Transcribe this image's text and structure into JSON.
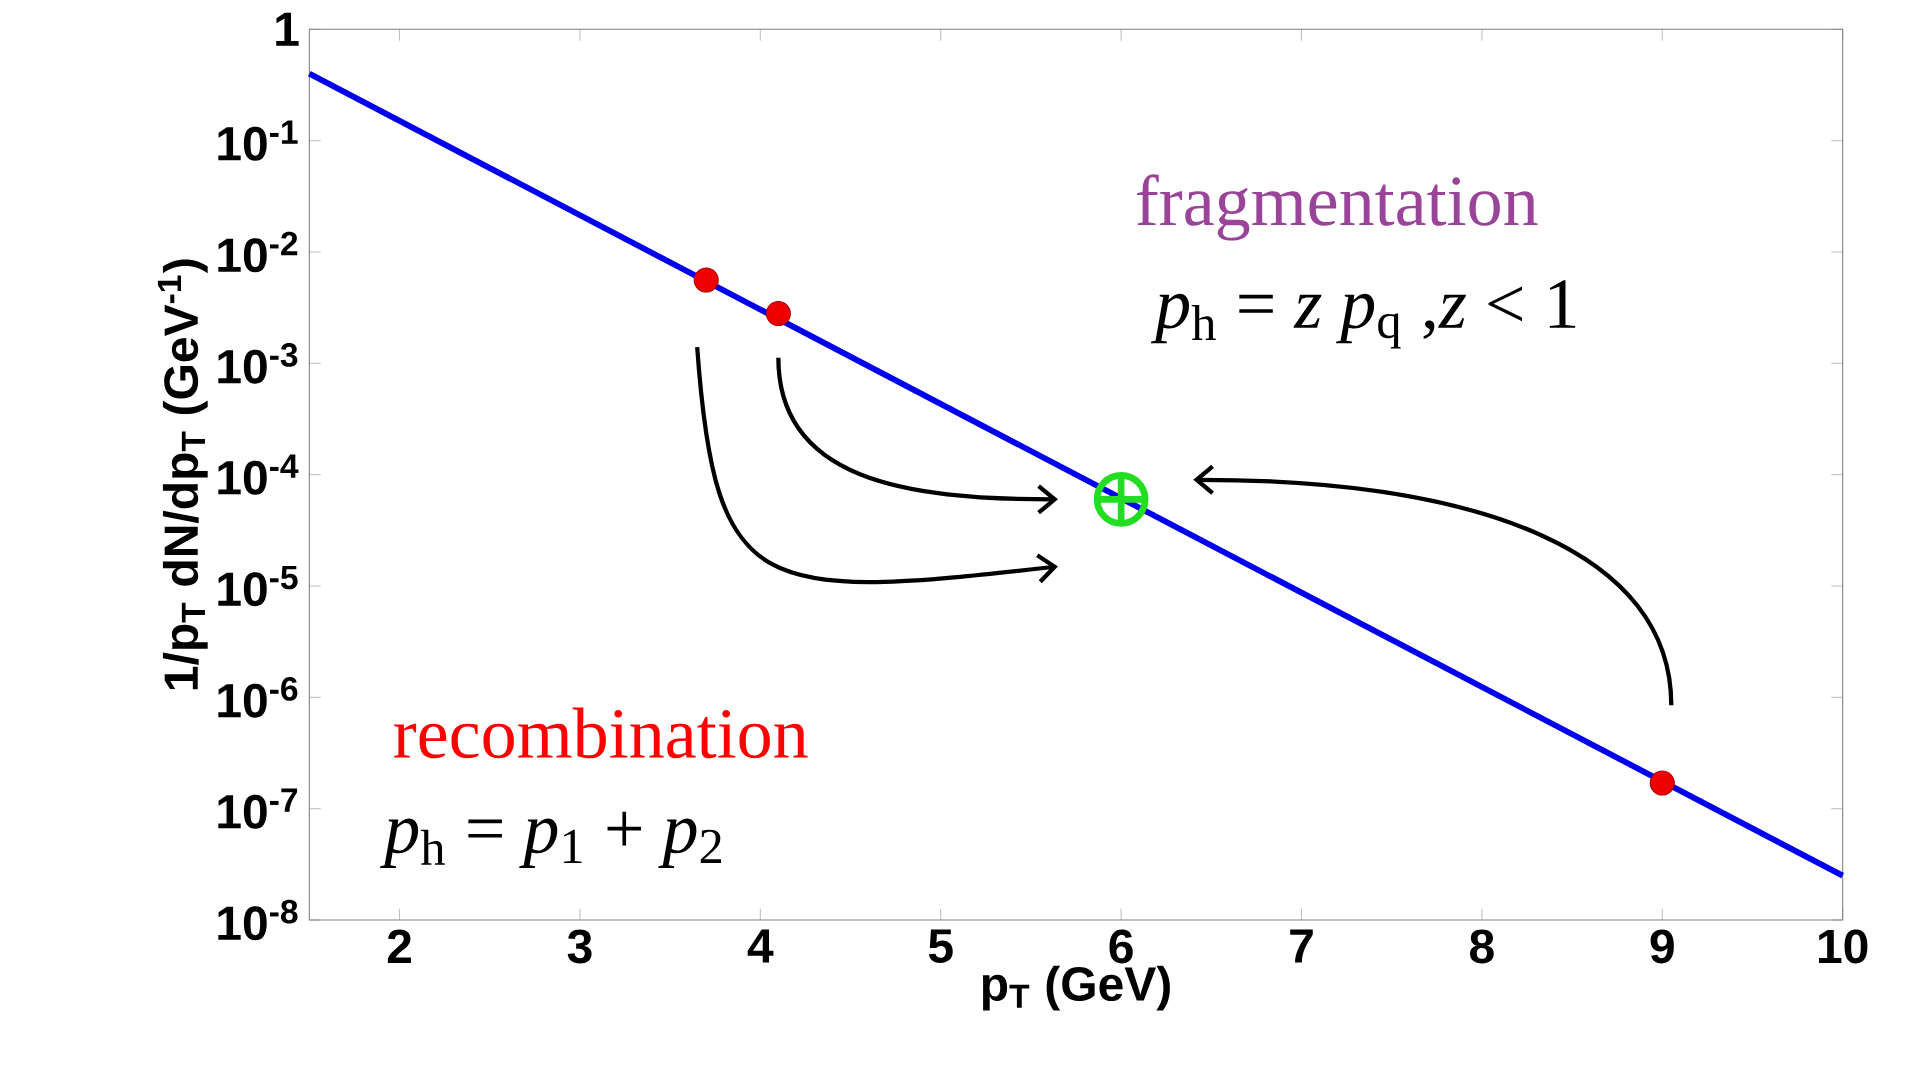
{
  "chart_data": {
    "type": "line",
    "xlabel": "p$_{T}$ (GeV)",
    "ylabel": "1/p$_{T}$ dN/dp$_{T}$ (GeV$^{-1}$)",
    "log": "y",
    "xlim": [
      1.5,
      10
    ],
    "xticks": [
      2,
      3,
      4,
      5,
      6,
      7,
      8,
      9,
      10
    ],
    "ylim": [
      1e-08,
      1
    ],
    "yticks": [
      {
        "value": 1e-08,
        "label": "10$^{-8}$"
      },
      {
        "value": 1e-07,
        "label": "10$^{-7}$"
      },
      {
        "value": 1e-06,
        "label": "10$^{-6}$"
      },
      {
        "value": 1e-05,
        "label": "10$^{-5}$"
      },
      {
        "value": 0.0001,
        "label": "10$^{-4}$"
      },
      {
        "value": 0.001,
        "label": "10$^{-3}$"
      },
      {
        "value": 0.01,
        "label": "10$^{-2}$"
      },
      {
        "value": 0.1,
        "label": "10$^{-1}$"
      },
      1
    ],
    "series": [
      {
        "color": "#0000ee",
        "x": [
          1.5,
          10
        ],
        "values": [
          0.4,
          2.5e-08
        ],
        "marker": "none"
      },
      {
        "type": "scatter",
        "color": "#ee0000",
        "x": [
          3.7,
          4.1,
          9
        ],
        "values": [
          0.0056,
          0.0028,
          1.7e-07
        ],
        "marker": "circle"
      },
      {
        "type": "scatter",
        "color": "#22dd22",
        "x": [
          6
        ],
        "values": [
          6e-05
        ],
        "marker": "cross"
      }
    ],
    "annotations": [
      "fragmentation",
      "*p*$_{h}$ = *z p*$_{q}$   ,*z* < 1",
      "recombination",
      "*p*$_{h}$ = *p*$_{1}$ + *p*$_{2}$"
    ]
  }
}
